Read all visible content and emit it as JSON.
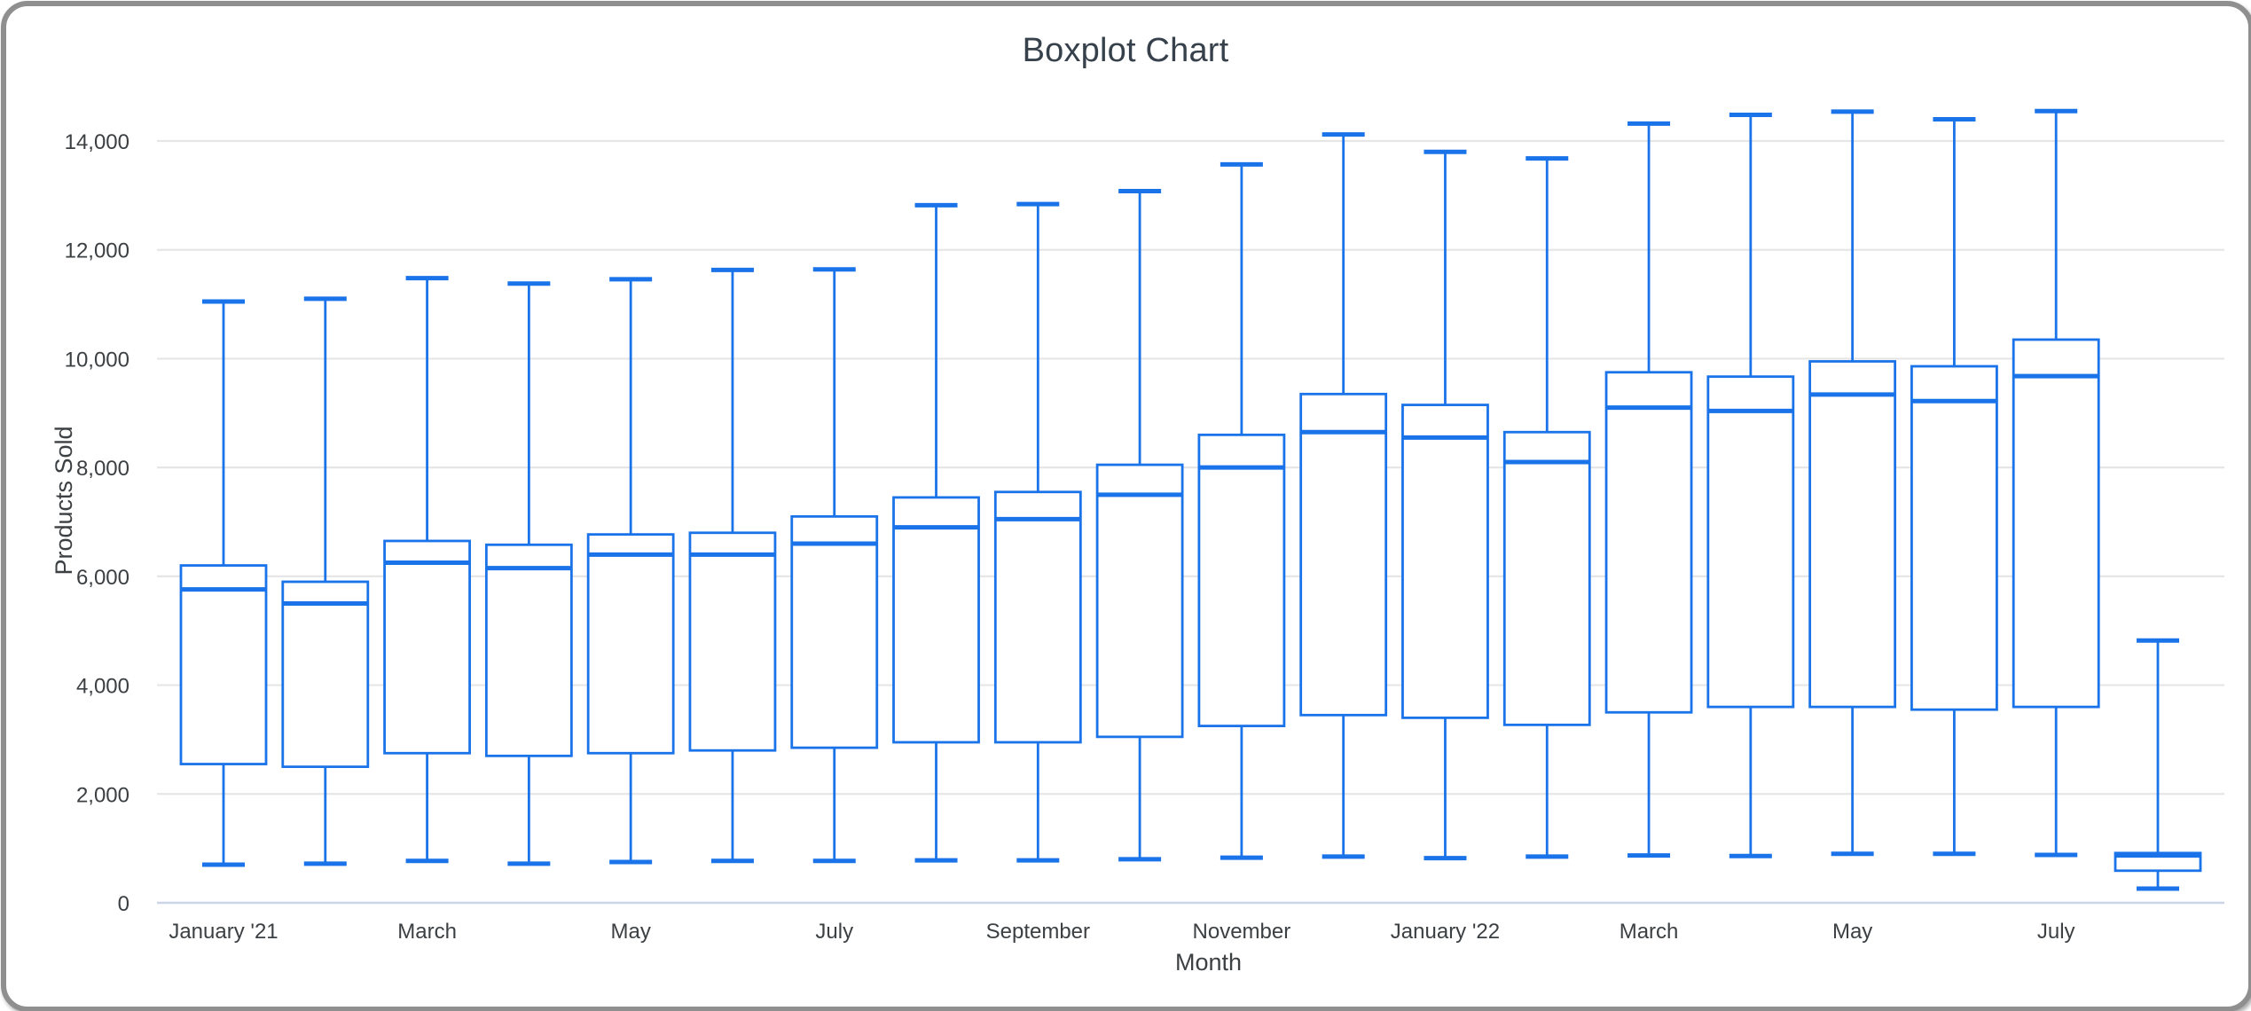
{
  "window": {
    "frame_color": "#8f8f8f",
    "background": "#ffffff"
  },
  "chart_data": {
    "type": "boxplot",
    "title": "Boxplot Chart",
    "xlabel": "Month",
    "ylabel": "Products Sold",
    "ylim": [
      0,
      14000
    ],
    "grid": true,
    "legend_position": "none",
    "colors": {
      "box_stroke": "#1a73e8",
      "box_fill": "#ffffff",
      "gridline": "#e6e6e6",
      "baseline": "#cbd5e8",
      "text": "#3c4043",
      "title_text": "#37414b"
    },
    "y_ticks": [
      {
        "value": 0,
        "label": "0"
      },
      {
        "value": 2000,
        "label": "2,000"
      },
      {
        "value": 4000,
        "label": "4,000"
      },
      {
        "value": 6000,
        "label": "6,000"
      },
      {
        "value": 8000,
        "label": "8,000"
      },
      {
        "value": 10000,
        "label": "10,000"
      },
      {
        "value": 12000,
        "label": "12,000"
      },
      {
        "value": 14000,
        "label": "14,000"
      }
    ],
    "boxes": [
      {
        "label": "January '21",
        "min": 700,
        "q1": 2550,
        "median": 5760,
        "q3": 6200,
        "max": 11050
      },
      {
        "label": "",
        "min": 720,
        "q1": 2500,
        "median": 5500,
        "q3": 5900,
        "max": 11100
      },
      {
        "label": "March",
        "min": 770,
        "q1": 2750,
        "median": 6250,
        "q3": 6650,
        "max": 11480
      },
      {
        "label": "",
        "min": 720,
        "q1": 2700,
        "median": 6150,
        "q3": 6580,
        "max": 11380
      },
      {
        "label": "May",
        "min": 750,
        "q1": 2750,
        "median": 6400,
        "q3": 6770,
        "max": 11460
      },
      {
        "label": "",
        "min": 770,
        "q1": 2800,
        "median": 6400,
        "q3": 6800,
        "max": 11630
      },
      {
        "label": "July",
        "min": 770,
        "q1": 2850,
        "median": 6600,
        "q3": 7100,
        "max": 11640
      },
      {
        "label": "",
        "min": 780,
        "q1": 2950,
        "median": 6900,
        "q3": 7450,
        "max": 12820
      },
      {
        "label": "September",
        "min": 780,
        "q1": 2950,
        "median": 7050,
        "q3": 7550,
        "max": 12840
      },
      {
        "label": "",
        "min": 800,
        "q1": 3050,
        "median": 7500,
        "q3": 8050,
        "max": 13080
      },
      {
        "label": "November",
        "min": 830,
        "q1": 3250,
        "median": 8000,
        "q3": 8600,
        "max": 13570
      },
      {
        "label": "",
        "min": 850,
        "q1": 3450,
        "median": 8650,
        "q3": 9350,
        "max": 14120
      },
      {
        "label": "January '22",
        "min": 820,
        "q1": 3400,
        "median": 8550,
        "q3": 9150,
        "max": 13800
      },
      {
        "label": "",
        "min": 850,
        "q1": 3270,
        "median": 8100,
        "q3": 8650,
        "max": 13680
      },
      {
        "label": "March",
        "min": 870,
        "q1": 3500,
        "median": 9100,
        "q3": 9750,
        "max": 14320
      },
      {
        "label": "",
        "min": 860,
        "q1": 3600,
        "median": 9040,
        "q3": 9670,
        "max": 14480
      },
      {
        "label": "May",
        "min": 900,
        "q1": 3600,
        "median": 9340,
        "q3": 9950,
        "max": 14540
      },
      {
        "label": "",
        "min": 900,
        "q1": 3550,
        "median": 9220,
        "q3": 9860,
        "max": 14400
      },
      {
        "label": "July",
        "min": 880,
        "q1": 3600,
        "median": 9680,
        "q3": 10350,
        "max": 14550
      },
      {
        "label": "",
        "min": 260,
        "q1": 590,
        "median": 870,
        "q3": 915,
        "max": 4820
      }
    ]
  }
}
